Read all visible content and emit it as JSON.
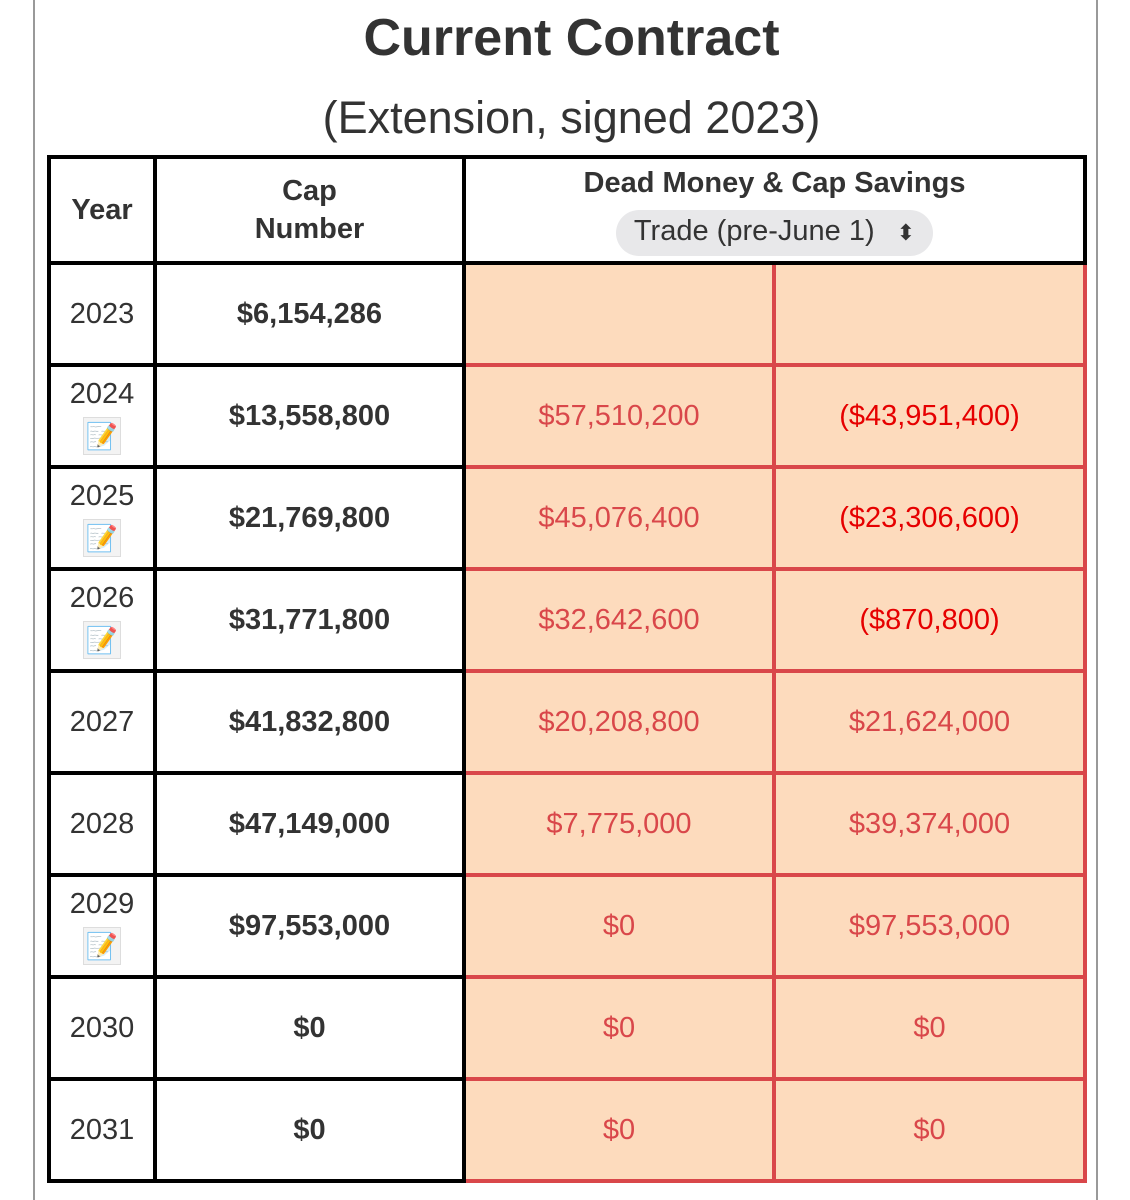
{
  "title": "Current Contract",
  "subtitle": "(Extension, signed 2023)",
  "headers": {
    "year": "Year",
    "cap_number_line1": "Cap",
    "cap_number_line2": "Number",
    "dead_money": "Dead Money & Cap Savings",
    "scenario_select": "Trade (pre-June 1)"
  },
  "colors": {
    "cell_bg": "#fddbbd",
    "cell_border": "#d9474a",
    "negative": "#e60000"
  },
  "rows": [
    {
      "year": "2023",
      "note": false,
      "cap": "$6,154,286",
      "dead": "",
      "savings": "",
      "neg": false
    },
    {
      "year": "2024",
      "note": true,
      "cap": "$13,558,800",
      "dead": "$57,510,200",
      "savings": "($43,951,400)",
      "neg": true
    },
    {
      "year": "2025",
      "note": true,
      "cap": "$21,769,800",
      "dead": "$45,076,400",
      "savings": "($23,306,600)",
      "neg": true
    },
    {
      "year": "2026",
      "note": true,
      "cap": "$31,771,800",
      "dead": "$32,642,600",
      "savings": "($870,800)",
      "neg": true
    },
    {
      "year": "2027",
      "note": false,
      "cap": "$41,832,800",
      "dead": "$20,208,800",
      "savings": "$21,624,000",
      "neg": false
    },
    {
      "year": "2028",
      "note": false,
      "cap": "$47,149,000",
      "dead": "$7,775,000",
      "savings": "$39,374,000",
      "neg": false
    },
    {
      "year": "2029",
      "note": true,
      "cap": "$97,553,000",
      "dead": "$0",
      "savings": "$97,553,000",
      "neg": false
    },
    {
      "year": "2030",
      "note": false,
      "cap": "$0",
      "dead": "$0",
      "savings": "$0",
      "neg": false
    },
    {
      "year": "2031",
      "note": false,
      "cap": "$0",
      "dead": "$0",
      "savings": "$0",
      "neg": false
    }
  ]
}
